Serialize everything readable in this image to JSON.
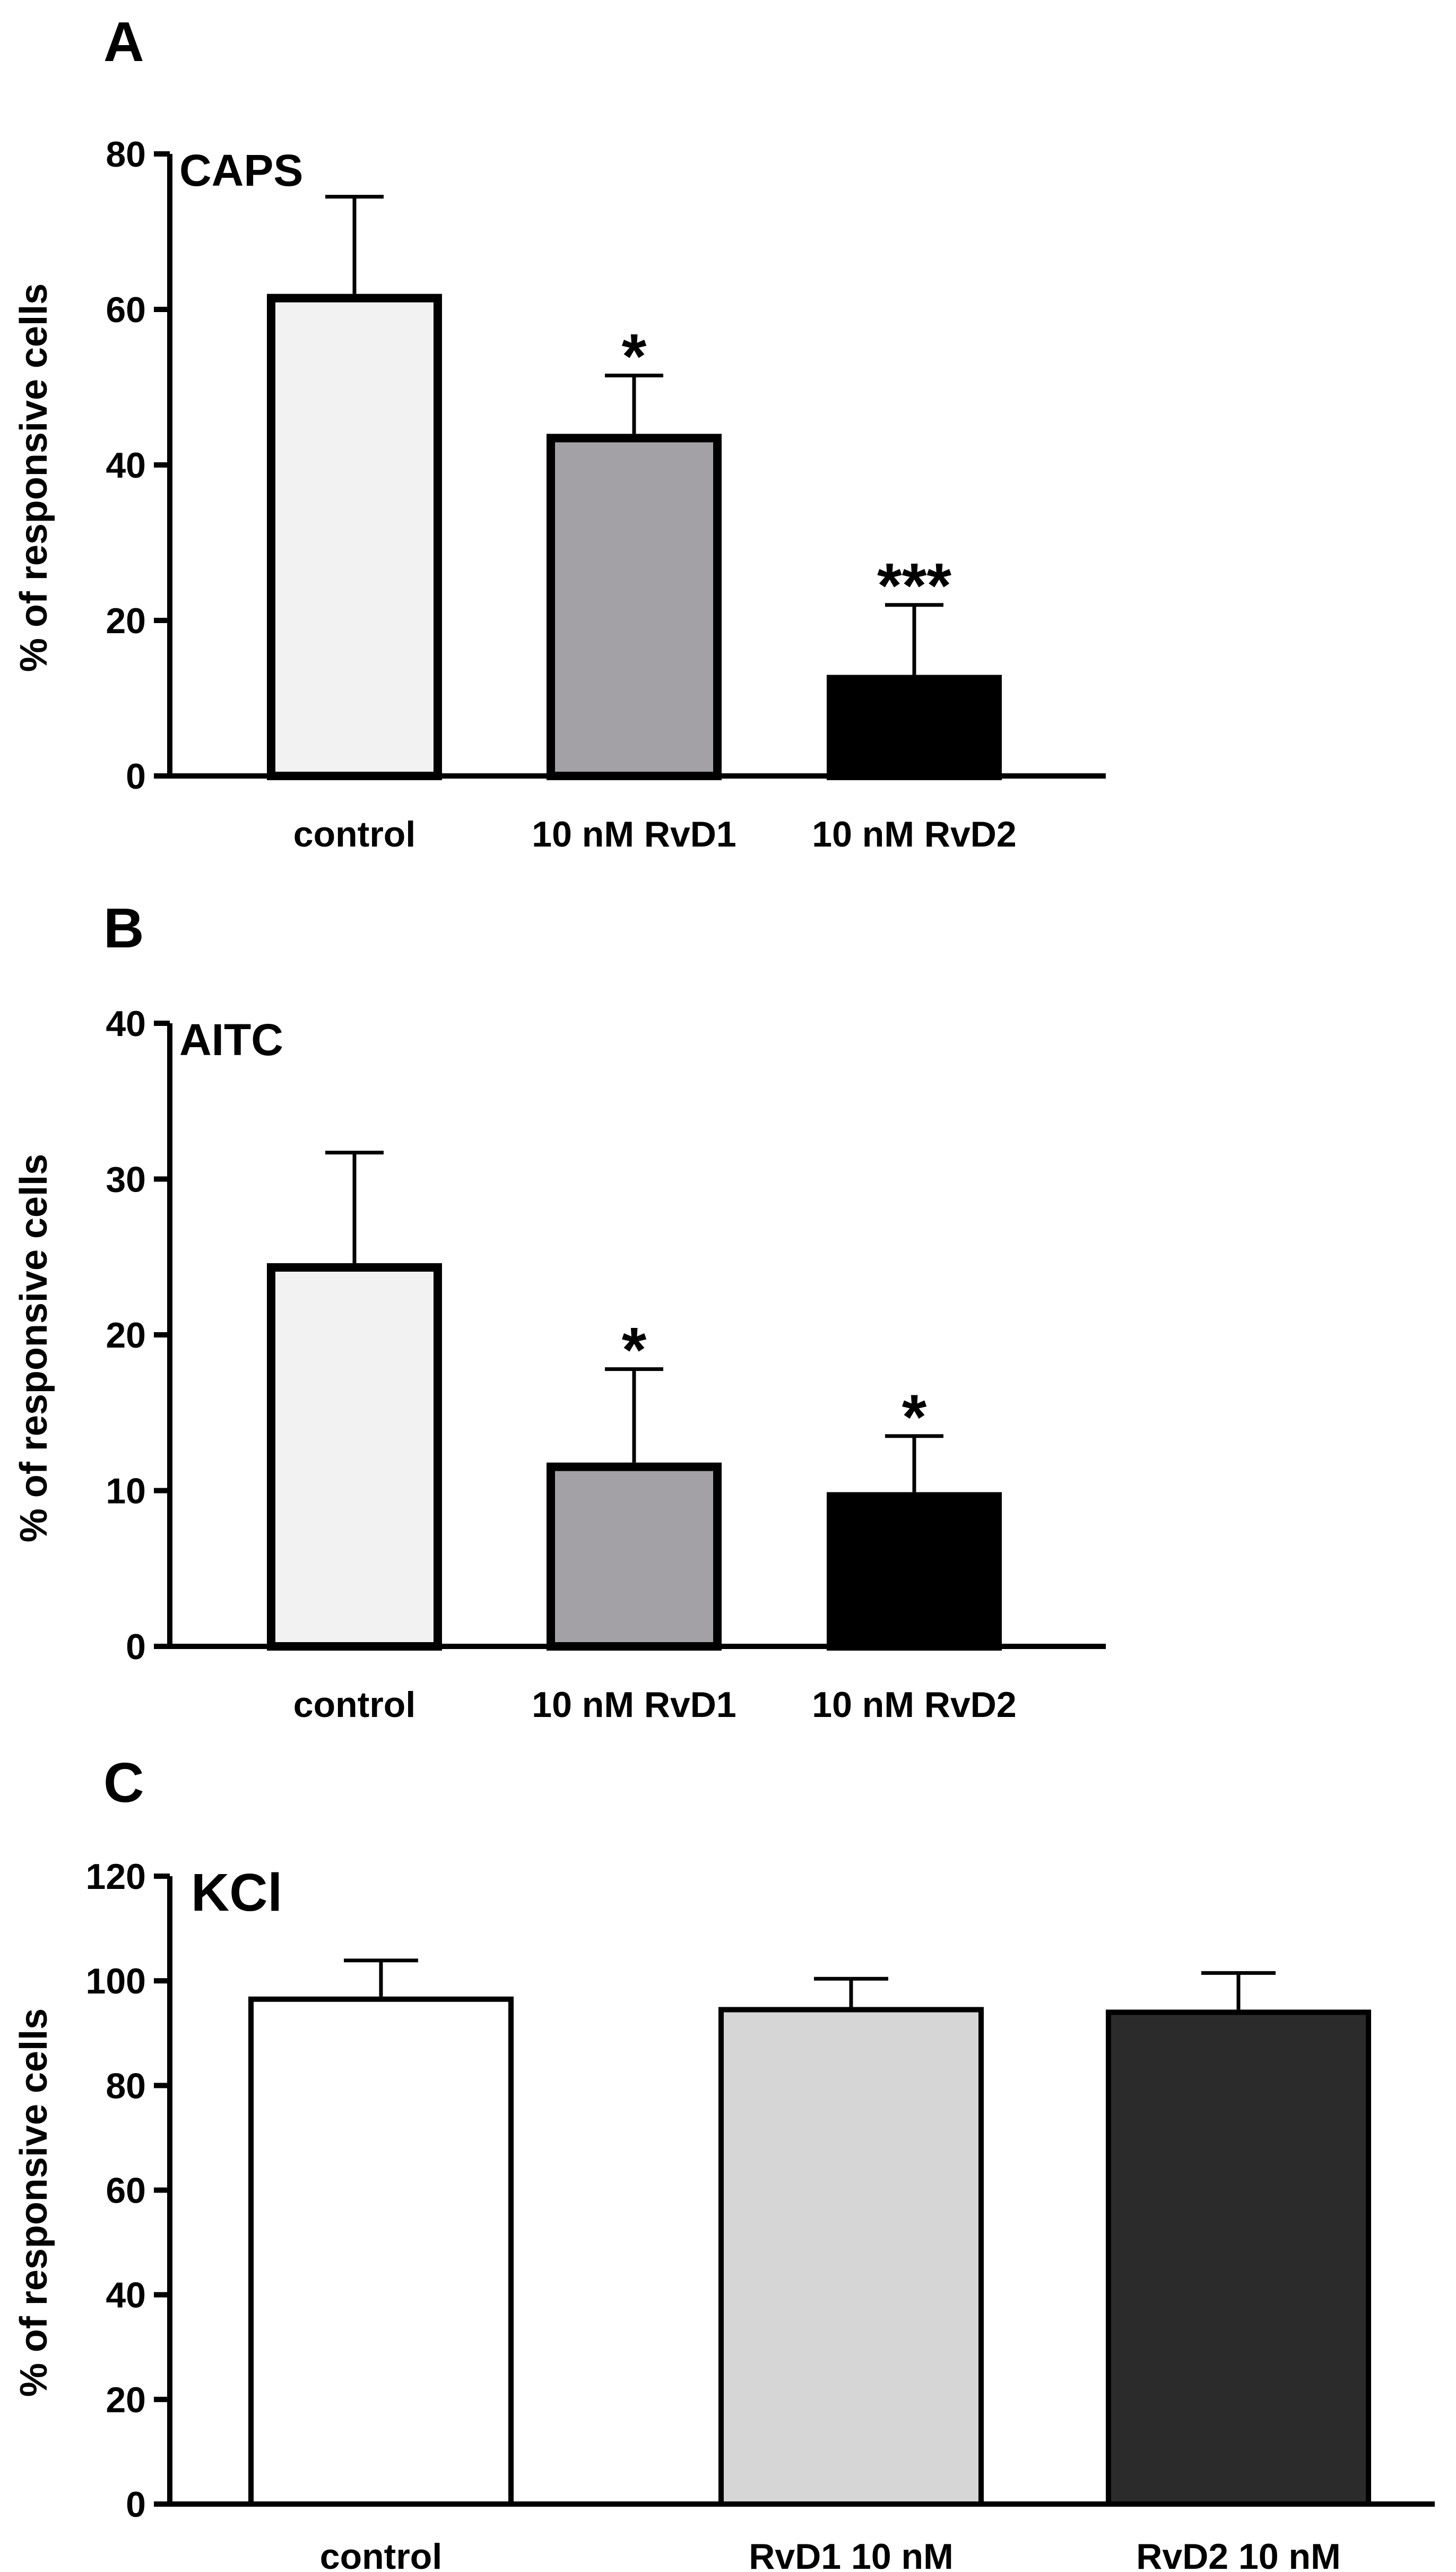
{
  "chart_data": [
    {
      "type": "bar",
      "panel": "A",
      "title": "CAPS",
      "ylabel": "% of responsive cells",
      "xlabel": "",
      "ylim": [
        0,
        80
      ],
      "yticks": [
        "0",
        "20",
        "40",
        "60",
        "80"
      ],
      "categories": [
        "control",
        "10 nM RvD1",
        "10 nM RvD2"
      ],
      "values": [
        62,
        44,
        13
      ],
      "error_upper": [
        12.5,
        7.5,
        9
      ],
      "significance": [
        "",
        "*",
        "***"
      ],
      "bar_colors": [
        "#f2f2f2",
        "#a3a1a6",
        "#000000"
      ],
      "edge_color": "#000000"
    },
    {
      "type": "bar",
      "panel": "B",
      "title": "AITC",
      "ylabel": "% of responsive cells",
      "xlabel": "",
      "ylim": [
        0,
        40
      ],
      "yticks": [
        "0",
        "10",
        "20",
        "30",
        "40"
      ],
      "categories": [
        "control",
        "10 nM RvD1",
        "10 nM RvD2"
      ],
      "values": [
        24.6,
        11.8,
        9.9
      ],
      "error_upper": [
        7.1,
        6.0,
        3.6
      ],
      "significance": [
        "",
        "*",
        "*"
      ],
      "bar_colors": [
        "#f2f2f2",
        "#a3a1a6",
        "#000000"
      ],
      "edge_color": "#000000"
    },
    {
      "type": "bar",
      "panel": "C",
      "title": "KCl",
      "ylabel": "% of responsive cells",
      "xlabel": "",
      "ylim": [
        0,
        120
      ],
      "yticks": [
        "0",
        "20",
        "40",
        "60",
        "80",
        "100",
        "120"
      ],
      "categories": [
        "control",
        "RvD1 10 nM",
        "RvD2 10 nM"
      ],
      "values": [
        97,
        95,
        94.5
      ],
      "error_upper": [
        6.9,
        5.4,
        7
      ],
      "significance": [
        "",
        "",
        ""
      ],
      "bar_colors": [
        "#ffffff",
        "#d6d6d6",
        "#2b2b2b"
      ],
      "edge_color": "#000000"
    }
  ]
}
